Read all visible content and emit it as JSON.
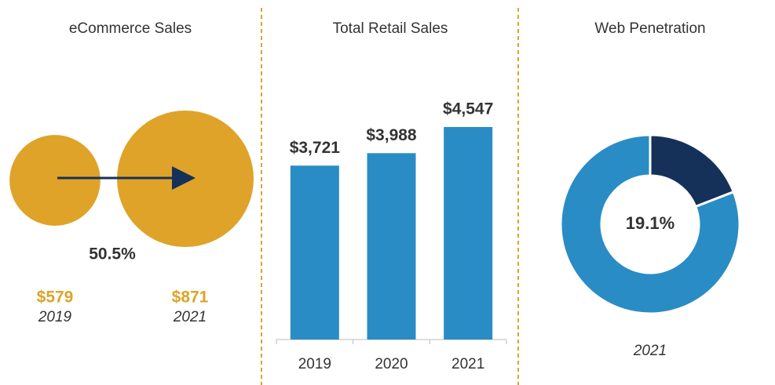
{
  "chart_data": [
    {
      "type": "bubble",
      "title": "eCommerce Sales",
      "categories": [
        "2019",
        "2021"
      ],
      "values": [
        579,
        871
      ],
      "value_labels": [
        "$579",
        "$871"
      ],
      "annotation": "50.5%",
      "color": "#dea328"
    },
    {
      "type": "bar",
      "title": "Total Retail Sales",
      "categories": [
        "2019",
        "2020",
        "2021"
      ],
      "values": [
        3721,
        3988,
        4547
      ],
      "value_labels": [
        "$3,721",
        "$3,988",
        "$4,547"
      ],
      "color": "#2a8cc4"
    },
    {
      "type": "donut",
      "title": "Web Penetration",
      "values": [
        19.1,
        80.9
      ],
      "value_labels": [
        "19.1%",
        null
      ],
      "colors": [
        "#15315a",
        "#2a8cc4"
      ],
      "caption": "2021"
    }
  ]
}
